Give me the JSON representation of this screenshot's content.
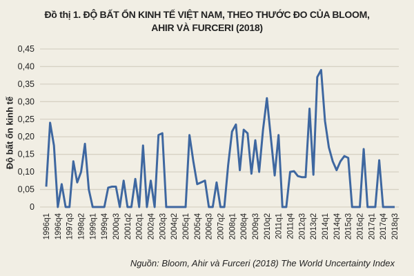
{
  "title": {
    "line1": "Đồ thị 1. ĐỘ BẤT ỔN KINH TẾ VIỆT NAM, THEO THƯỚC ĐO CỦA BLOOM,",
    "line2": "AHIR VÀ FURCERI (2018)"
  },
  "source": "Nguồn: Bloom, Ahir và Furceri (2018) The World Uncertainty Index",
  "colors": {
    "line": "#3e67a0",
    "grid": "#d6d1c3",
    "background": "#f1eee4"
  },
  "chart_data": {
    "type": "line",
    "title": "Đồ thị 1. ĐỘ BẤT ỔN KINH TẾ VIỆT NAM, THEO THƯỚC ĐO CỦA BLOOM, AHIR VÀ FURCERI (2018)",
    "xlabel": "",
    "ylabel": "Độ bất ổn kinh tế",
    "ylim": [
      0,
      0.45
    ],
    "yticks": [
      "0",
      "0,05",
      "0,10",
      "0,15",
      "0,20",
      "0,25",
      "0,30",
      "0,35",
      "0,40",
      "0,45"
    ],
    "ytick_values": [
      0,
      0.05,
      0.1,
      0.15,
      0.2,
      0.25,
      0.3,
      0.35,
      0.4,
      0.45
    ],
    "grid": true,
    "legend": "none",
    "x_start": "1996q1",
    "x_end": "2018q3",
    "xtick_labels": [
      "1996q1",
      "1996q4",
      "1997q3",
      "1998q2",
      "1999q1",
      "1999q4",
      "2000q3",
      "2001q2",
      "2002q1",
      "2002q4",
      "2003q3",
      "2004q2",
      "2005q1",
      "2005q4",
      "2006q3",
      "2007q2",
      "2008q1",
      "2008q4",
      "2009q3",
      "2010q2",
      "2011q1",
      "2011q4",
      "2012q3",
      "2013q2",
      "2014q1",
      "2014q4",
      "2015q3",
      "2016q2",
      "2017q1",
      "2017q4",
      "2018q3"
    ],
    "xtick_every": 3,
    "series": [
      {
        "name": "Độ bất ổn kinh tế",
        "values": [
          0.058,
          0.24,
          0.175,
          0,
          0.065,
          0,
          0,
          0.13,
          0.07,
          0.1,
          0.18,
          0.05,
          0,
          0,
          0,
          0,
          0.055,
          0.058,
          0.058,
          0,
          0.075,
          0,
          0,
          0.08,
          0,
          0.175,
          0,
          0.075,
          0,
          0.205,
          0.21,
          0,
          0,
          0,
          0,
          0,
          0,
          0.205,
          0.13,
          0.065,
          0.07,
          0.075,
          0,
          0,
          0.07,
          0,
          0,
          0.12,
          0.215,
          0.235,
          0.105,
          0.22,
          0.21,
          0.095,
          0.19,
          0.1,
          0.22,
          0.31,
          0.2,
          0.09,
          0.205,
          0,
          0,
          0.1,
          0.102,
          0.088,
          0.085,
          0.085,
          0.28,
          0.092,
          0.37,
          0.39,
          0.245,
          0.17,
          0.13,
          0.105,
          0.13,
          0.145,
          0.14,
          0,
          0,
          0,
          0.165,
          0,
          0,
          0,
          0.133,
          0,
          0,
          0,
          0
        ]
      }
    ]
  }
}
